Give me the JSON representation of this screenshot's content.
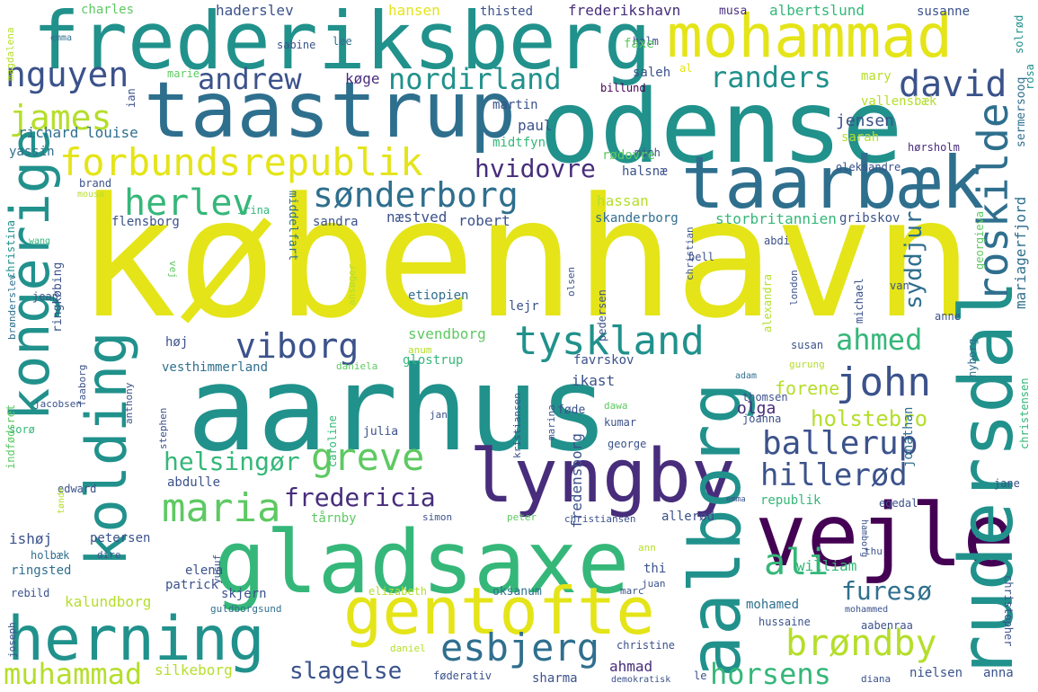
{
  "palette": {
    "yellow": "#e4e419",
    "lime": "#b5de2b",
    "green": "#5ec962",
    "mint": "#35b779",
    "teal": "#21918c",
    "slate": "#2f6f8e",
    "navy": "#3b528b",
    "indigo": "#472d7b",
    "purple": "#440154"
  },
  "words": [
    {
      "text": "frederiksberg",
      "color": "teal"
    },
    {
      "text": "mohammad",
      "color": "yellow"
    },
    {
      "text": "taastrup",
      "color": "slate"
    },
    {
      "text": "odense",
      "color": "teal"
    },
    {
      "text": "taarbæk",
      "color": "slate"
    },
    {
      "text": "københavn",
      "color": "yellow"
    },
    {
      "text": "aarhus",
      "color": "teal"
    },
    {
      "text": "gladsaxe",
      "color": "mint"
    },
    {
      "text": "lyngby",
      "color": "indigo"
    },
    {
      "text": "vejle",
      "color": "purple"
    },
    {
      "text": "aalborg",
      "color": "teal"
    },
    {
      "text": "rudersdal",
      "color": "teal"
    },
    {
      "text": "roskilde",
      "color": "slate"
    },
    {
      "text": "kongerige",
      "color": "teal"
    },
    {
      "text": "kolding",
      "color": "teal"
    },
    {
      "text": "herning",
      "color": "teal"
    },
    {
      "text": "gentofte",
      "color": "yellow"
    },
    {
      "text": "forbundsrepublik",
      "color": "yellow"
    },
    {
      "text": "nguyen",
      "color": "navy"
    },
    {
      "text": "andrew",
      "color": "navy"
    },
    {
      "text": "nordirland",
      "color": "teal"
    },
    {
      "text": "randers",
      "color": "teal"
    },
    {
      "text": "david",
      "color": "navy"
    },
    {
      "text": "james",
      "color": "lime"
    },
    {
      "text": "herlev",
      "color": "mint"
    },
    {
      "text": "sønderborg",
      "color": "slate"
    },
    {
      "text": "hvidovre",
      "color": "indigo"
    },
    {
      "text": "viborg",
      "color": "navy"
    },
    {
      "text": "tyskland",
      "color": "teal"
    },
    {
      "text": "ahmed",
      "color": "mint"
    },
    {
      "text": "john",
      "color": "navy"
    },
    {
      "text": "ballerup",
      "color": "navy"
    },
    {
      "text": "hillerød",
      "color": "navy"
    },
    {
      "text": "helsingør",
      "color": "mint"
    },
    {
      "text": "greve",
      "color": "green"
    },
    {
      "text": "maria",
      "color": "green"
    },
    {
      "text": "fredericia",
      "color": "indigo"
    },
    {
      "text": "ali",
      "color": "mint"
    },
    {
      "text": "furesø",
      "color": "slate"
    },
    {
      "text": "brøndby",
      "color": "lime"
    },
    {
      "text": "esbjerg",
      "color": "slate"
    },
    {
      "text": "horsens",
      "color": "mint"
    },
    {
      "text": "muhammad",
      "color": "lime"
    },
    {
      "text": "slagelse",
      "color": "navy"
    },
    {
      "text": "holstebro",
      "color": "lime"
    },
    {
      "text": "forene",
      "color": "lime"
    },
    {
      "text": "olga",
      "color": "indigo"
    },
    {
      "text": "syddjur",
      "color": "slate"
    },
    {
      "text": "mariagerfjord",
      "color": "slate"
    },
    {
      "text": "charles",
      "color": "green"
    },
    {
      "text": "haderslev",
      "color": "navy"
    },
    {
      "text": "hansen",
      "color": "yellow"
    },
    {
      "text": "thisted",
      "color": "navy"
    },
    {
      "text": "frederikshavn",
      "color": "indigo"
    },
    {
      "text": "musa",
      "color": "indigo"
    },
    {
      "text": "albertslund",
      "color": "mint"
    },
    {
      "text": "susanne",
      "color": "navy"
    },
    {
      "text": "magdalena",
      "color": "lime"
    },
    {
      "text": "emma",
      "color": "slate"
    },
    {
      "text": "sabine",
      "color": "navy"
    },
    {
      "text": "lee",
      "color": "slate"
    },
    {
      "text": "holm",
      "color": "navy"
    },
    {
      "text": "faxe",
      "color": "green"
    },
    {
      "text": "solrød",
      "color": "teal"
    },
    {
      "text": "rosa",
      "color": "teal"
    },
    {
      "text": "marie",
      "color": "green"
    },
    {
      "text": "køge",
      "color": "indigo"
    },
    {
      "text": "saleh",
      "color": "navy"
    },
    {
      "text": "al",
      "color": "yellow"
    },
    {
      "text": "mary",
      "color": "lime"
    },
    {
      "text": "billund",
      "color": "purple"
    },
    {
      "text": "vallensbæk",
      "color": "lime"
    },
    {
      "text": "sermersooq",
      "color": "slate"
    },
    {
      "text": "ian",
      "color": "navy"
    },
    {
      "text": "martin",
      "color": "navy"
    },
    {
      "text": "paul",
      "color": "navy"
    },
    {
      "text": "jensen",
      "color": "navy"
    },
    {
      "text": "sarah",
      "color": "lime"
    },
    {
      "text": "richard",
      "color": "slate"
    },
    {
      "text": "louise",
      "color": "slate"
    },
    {
      "text": "midtfyn",
      "color": "mint"
    },
    {
      "text": "hørsholm",
      "color": "indigo"
    },
    {
      "text": "yassin",
      "color": "slate"
    },
    {
      "text": "minh",
      "color": "navy"
    },
    {
      "text": "rødovre",
      "color": "green"
    },
    {
      "text": "halsnæ",
      "color": "navy"
    },
    {
      "text": "oleksandre",
      "color": "navy"
    },
    {
      "text": "brand",
      "color": "navy"
    },
    {
      "text": "mousa",
      "color": "lime"
    },
    {
      "text": "christina",
      "color": "teal"
    },
    {
      "text": "hassan",
      "color": "lime"
    },
    {
      "text": "sandra",
      "color": "navy"
    },
    {
      "text": "næstved",
      "color": "navy"
    },
    {
      "text": "robert",
      "color": "navy"
    },
    {
      "text": "skanderborg",
      "color": "slate"
    },
    {
      "text": "storbritannien",
      "color": "mint"
    },
    {
      "text": "gribskov",
      "color": "navy"
    },
    {
      "text": "flensborg",
      "color": "navy"
    },
    {
      "text": "middelfart",
      "color": "slate"
    },
    {
      "text": "irina",
      "color": "mint"
    },
    {
      "text": "abdi",
      "color": "navy"
    },
    {
      "text": "wang",
      "color": "mint"
    },
    {
      "text": "vej",
      "color": "green"
    },
    {
      "text": "ansøger",
      "color": "lime"
    },
    {
      "text": "olsen",
      "color": "navy"
    },
    {
      "text": "christian",
      "color": "navy"
    },
    {
      "text": "bell",
      "color": "navy"
    },
    {
      "text": "georgieva",
      "color": "green"
    },
    {
      "text": "brønderslev",
      "color": "slate"
    },
    {
      "text": "ringkøbing",
      "color": "navy"
    },
    {
      "text": "jean",
      "color": "navy"
    },
    {
      "text": "etiopien",
      "color": "slate"
    },
    {
      "text": "lejr",
      "color": "navy"
    },
    {
      "text": "pedersen",
      "color": "navy"
    },
    {
      "text": "alexandra",
      "color": "lime"
    },
    {
      "text": "london",
      "color": "navy"
    },
    {
      "text": "van",
      "color": "navy"
    },
    {
      "text": "michael",
      "color": "navy"
    },
    {
      "text": "anne",
      "color": "navy"
    },
    {
      "text": "høj",
      "color": "navy"
    },
    {
      "text": "svendborg",
      "color": "green"
    },
    {
      "text": "anum",
      "color": "lime"
    },
    {
      "text": "susan",
      "color": "navy"
    },
    {
      "text": "vesthimmerland",
      "color": "slate"
    },
    {
      "text": "daniela",
      "color": "green"
    },
    {
      "text": "glostrup",
      "color": "mint"
    },
    {
      "text": "favrskov",
      "color": "navy"
    },
    {
      "text": "gurung",
      "color": "lime"
    },
    {
      "text": "nyborg",
      "color": "slate"
    },
    {
      "text": "faaborg",
      "color": "navy"
    },
    {
      "text": "anthony",
      "color": "navy"
    },
    {
      "text": "stephen",
      "color": "navy"
    },
    {
      "text": "adam",
      "color": "slate"
    },
    {
      "text": "ikast",
      "color": "navy"
    },
    {
      "text": "thomsen",
      "color": "navy"
    },
    {
      "text": "christensen",
      "color": "mint"
    },
    {
      "text": "indfødsret",
      "color": "green"
    },
    {
      "text": "jacobsen",
      "color": "navy"
    },
    {
      "text": "caroline",
      "color": "mint"
    },
    {
      "text": "føde",
      "color": "navy"
    },
    {
      "text": "kristiansen",
      "color": "navy"
    },
    {
      "text": "dawa",
      "color": "green"
    },
    {
      "text": "jan",
      "color": "navy"
    },
    {
      "text": "marina",
      "color": "navy"
    },
    {
      "text": "kumar",
      "color": "navy"
    },
    {
      "text": "joanna",
      "color": "navy"
    },
    {
      "text": "sorø",
      "color": "mint"
    },
    {
      "text": "julia",
      "color": "navy"
    },
    {
      "text": "fredensborg",
      "color": "navy"
    },
    {
      "text": "george",
      "color": "navy"
    },
    {
      "text": "jonathan",
      "color": "slate"
    },
    {
      "text": "abdulle",
      "color": "navy"
    },
    {
      "text": "edward",
      "color": "navy"
    },
    {
      "text": "tønde",
      "color": "lime"
    },
    {
      "text": "emma",
      "color": "navy"
    },
    {
      "text": "jane",
      "color": "navy"
    },
    {
      "text": "republik",
      "color": "mint"
    },
    {
      "text": "egedal",
      "color": "navy"
    },
    {
      "text": "tårnby",
      "color": "green"
    },
    {
      "text": "simon",
      "color": "navy"
    },
    {
      "text": "peter",
      "color": "green"
    },
    {
      "text": "christiansen",
      "color": "navy"
    },
    {
      "text": "allerød",
      "color": "navy"
    },
    {
      "text": "ishøj",
      "color": "navy"
    },
    {
      "text": "petersen",
      "color": "navy"
    },
    {
      "text": "holbæk",
      "color": "slate"
    },
    {
      "text": "dire",
      "color": "navy"
    },
    {
      "text": "yusuf",
      "color": "navy"
    },
    {
      "text": "ann",
      "color": "lime"
    },
    {
      "text": "hamborg",
      "color": "navy"
    },
    {
      "text": "thu",
      "color": "navy"
    },
    {
      "text": "thi",
      "color": "navy"
    },
    {
      "text": "william",
      "color": "mint"
    },
    {
      "text": "ringsted",
      "color": "slate"
    },
    {
      "text": "elena",
      "color": "navy"
    },
    {
      "text": "juan",
      "color": "navy"
    },
    {
      "text": "mohammed",
      "color": "navy"
    },
    {
      "text": "rebild",
      "color": "navy"
    },
    {
      "text": "patrick",
      "color": "navy"
    },
    {
      "text": "skjern",
      "color": "navy"
    },
    {
      "text": "elizabeth",
      "color": "lime"
    },
    {
      "text": "oksanum",
      "color": "slate"
    },
    {
      "text": "marc",
      "color": "navy"
    },
    {
      "text": "mohamed",
      "color": "slate"
    },
    {
      "text": "kalundborg",
      "color": "lime"
    },
    {
      "text": "guldborgsund",
      "color": "slate"
    },
    {
      "text": "hussaine",
      "color": "navy"
    },
    {
      "text": "aabenraa",
      "color": "navy"
    },
    {
      "text": "christopher",
      "color": "navy"
    },
    {
      "text": "joseph",
      "color": "navy"
    },
    {
      "text": "daniel",
      "color": "lime"
    },
    {
      "text": "christine",
      "color": "navy"
    },
    {
      "text": "silkeborg",
      "color": "lime"
    },
    {
      "text": "ahmad",
      "color": "indigo"
    },
    {
      "text": "føderativ",
      "color": "navy"
    },
    {
      "text": "sharma",
      "color": "navy"
    },
    {
      "text": "demokratisk",
      "color": "navy"
    },
    {
      "text": "le",
      "color": "navy"
    },
    {
      "text": "diana",
      "color": "navy"
    },
    {
      "text": "nielsen",
      "color": "navy"
    },
    {
      "text": "anna",
      "color": "navy"
    }
  ]
}
